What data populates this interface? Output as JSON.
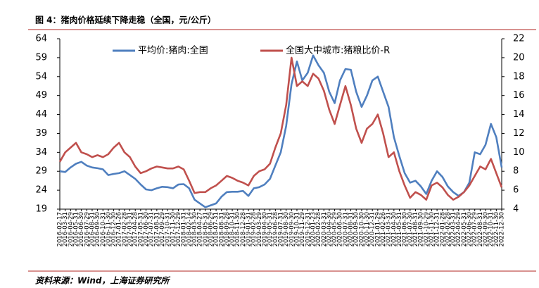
{
  "chart_data": {
    "type": "line",
    "title": "图 4：猪肉价格延续下降走稳（全国，元/公斤）",
    "source": "资料来源：Wind，上海证券研究所",
    "categories": [
      "2016-02-17",
      "2016-03-31",
      "2016-04-29",
      "2016-05-31",
      "2016-06-30",
      "2016-07-29",
      "2016-08-31",
      "2016-09-30",
      "2016-10-31",
      "2016-11-30",
      "2016-12-30",
      "2017-01-26",
      "2017-02-28",
      "2017-03-31",
      "2017-04-28",
      "2017-05-31",
      "2017-06-30",
      "2017-07-31",
      "2017-08-31",
      "2017-09-29",
      "2017-10-31",
      "2017-11-30",
      "2017-12-29",
      "2018-01-31",
      "2018-02-14",
      "2018-03-30",
      "2018-04-27",
      "2018-05-31",
      "2018-06-29",
      "2018-07-31",
      "2018-08-31",
      "2018-09-28",
      "2018-10-31",
      "2018-11-30",
      "2018-12-28",
      "2019-01-31",
      "2019-02-28",
      "2019-03-29",
      "2019-04-30",
      "2019-05-31",
      "2019-06-28",
      "2019-07-31",
      "2019-08-30",
      "2019-09-30",
      "2019-10-31",
      "2019-11-29",
      "2019-12-31",
      "2020-01-23",
      "2020-02-28",
      "2020-03-31",
      "2020-04-30",
      "2020-05-29",
      "2020-06-30",
      "2020-07-31",
      "2020-08-31",
      "2020-09-30",
      "2020-10-30",
      "2020-11-30",
      "2020-12-31",
      "2021-01-29",
      "2021-02-26",
      "2021-03-31",
      "2021-04-30",
      "2021-05-31",
      "2021-06-30",
      "2021-07-30",
      "2021-08-31",
      "2021-09-30",
      "2021-10-29",
      "2021-11-30",
      "2021-12-31",
      "2022-01-28",
      "2022-02-28",
      "2022-03-31",
      "2022-04-29",
      "2022-05-31",
      "2022-06-30",
      "2022-07-29",
      "2022-08-31",
      "2022-09-30",
      "2022-10-31",
      "2022-11-30",
      "2022-12-30"
    ],
    "series": [
      {
        "name": "平均价:猪肉:全国",
        "color": "#4f7fbf",
        "axis": "y",
        "values": [
          29,
          28.8,
          30,
          31,
          31.5,
          30.5,
          30,
          29.8,
          29.5,
          28,
          28.3,
          28.5,
          29,
          28,
          27,
          25.5,
          24.2,
          24,
          24.5,
          24.9,
          24.8,
          24.5,
          25.5,
          25.6,
          24.5,
          21.5,
          20.5,
          19.5,
          20,
          20.5,
          22.3,
          23.5,
          23.6,
          23.6,
          23.8,
          22.5,
          24.5,
          24.8,
          25.5,
          27,
          30.5,
          34,
          41,
          52,
          58,
          53,
          55,
          59.6,
          57,
          55,
          50,
          47,
          53,
          56,
          55.8,
          50,
          46,
          49,
          53,
          54,
          50,
          46,
          38,
          33,
          28.5,
          26,
          26.5,
          25,
          23,
          26.5,
          29,
          27.5,
          25,
          23.5,
          22.5,
          23.5,
          26,
          34,
          33.5,
          36,
          41.5,
          38,
          30
        ]
      },
      {
        "name": "全国大中城市:猪粮比价-R",
        "color": "#c0504d",
        "axis": "y2",
        "values": [
          9,
          10,
          10.5,
          11,
          10,
          9.8,
          9.5,
          9.7,
          9.5,
          9.8,
          10.5,
          11,
          10,
          9.5,
          8.5,
          7.8,
          8,
          8.3,
          8.5,
          8.4,
          8.3,
          8.3,
          8.5,
          8.2,
          7,
          5.7,
          5.8,
          5.8,
          6.2,
          6.5,
          7,
          7.5,
          7.3,
          7,
          6.8,
          6.5,
          7.5,
          8,
          8.2,
          8.8,
          10.5,
          12,
          15,
          20,
          17,
          17.5,
          17,
          18.3,
          17.8,
          16.5,
          14.5,
          13,
          15,
          17,
          15,
          12.5,
          11,
          12.5,
          13,
          14,
          12,
          9.5,
          10,
          8,
          6.5,
          5.2,
          5.8,
          5.5,
          5,
          6.5,
          6.8,
          6.3,
          5.5,
          5,
          5.3,
          5.8,
          6.5,
          7.5,
          8.5,
          8.2,
          9.3,
          7.8,
          6.3
        ]
      }
    ],
    "ylim": [
      19,
      64
    ],
    "yticks": [
      19,
      24,
      29,
      34,
      39,
      44,
      49,
      54,
      59,
      64
    ],
    "y2lim": [
      4,
      22
    ],
    "y2ticks": [
      4,
      6,
      8,
      10,
      12,
      14,
      16,
      18,
      20,
      22
    ],
    "grid": false,
    "legend": "top"
  }
}
